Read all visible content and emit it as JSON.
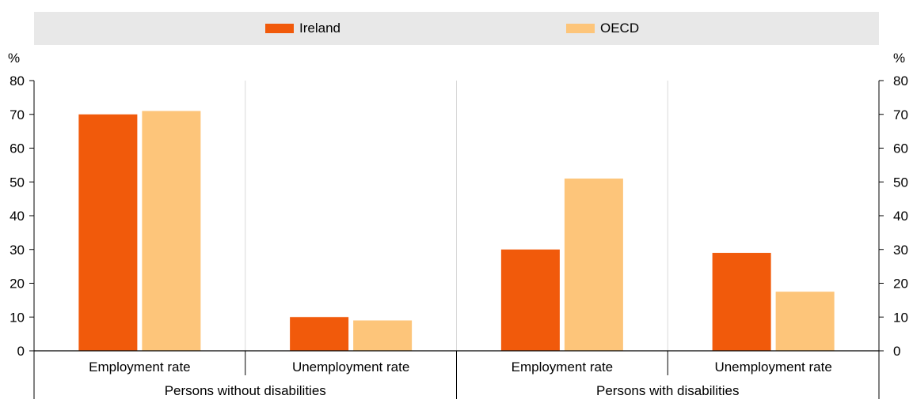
{
  "chart_data": {
    "type": "bar",
    "unit_left": "%",
    "unit_right": "%",
    "ylim": [
      0,
      80
    ],
    "yticks": [
      "0",
      "10",
      "20",
      "30",
      "40",
      "50",
      "60",
      "70",
      "80"
    ],
    "categories": [
      "Employment rate",
      "Unemployment rate",
      "Employment rate",
      "Unemployment rate"
    ],
    "groups": [
      {
        "label": "Persons without disabilities",
        "span": 2
      },
      {
        "label": "Persons with disabilities",
        "span": 2
      }
    ],
    "series": [
      {
        "name": "Ireland",
        "color": "#F15A0B",
        "values": [
          70,
          10,
          30,
          29
        ]
      },
      {
        "name": "OECD",
        "color": "#FDC57A",
        "values": [
          71,
          9,
          51,
          17.5
        ]
      }
    ],
    "grid": true,
    "legend_position": "top"
  }
}
